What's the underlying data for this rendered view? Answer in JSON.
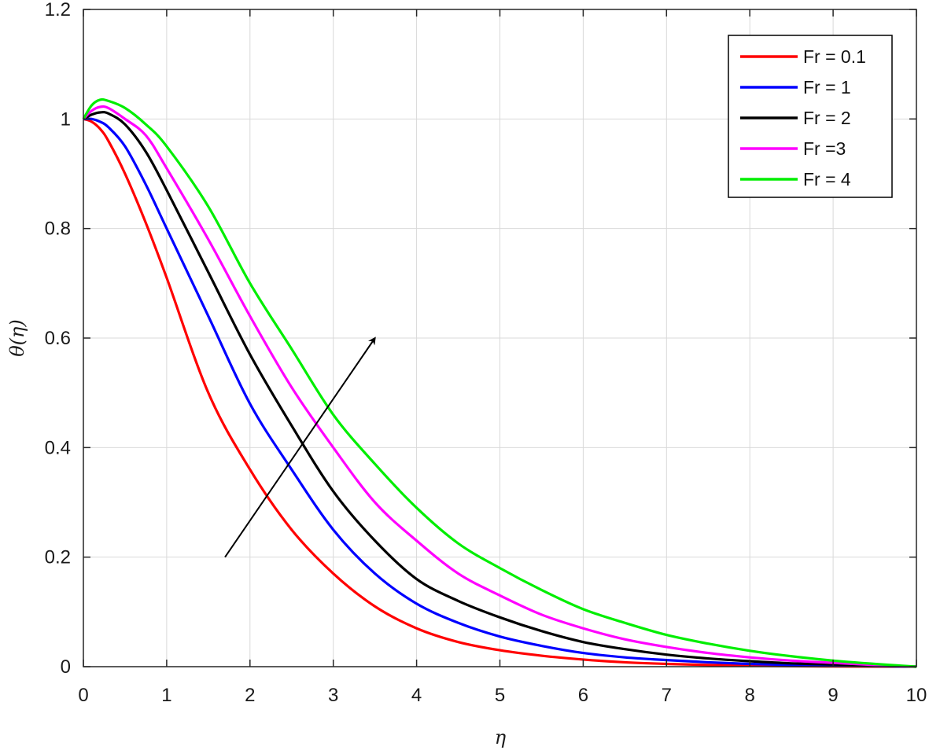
{
  "chart_data": {
    "type": "line",
    "xlabel": "η",
    "ylabel": "θ(η)",
    "xlim": [
      0,
      10
    ],
    "ylim": [
      0,
      1.2
    ],
    "xticks": [
      "0",
      "1",
      "2",
      "3",
      "4",
      "5",
      "6",
      "7",
      "8",
      "9",
      "10"
    ],
    "yticks": [
      "0",
      "0.2",
      "0.4",
      "0.6",
      "0.8",
      "1",
      "1.2"
    ],
    "grid": true,
    "legend_position": "top-right",
    "x": [
      0,
      0.1,
      0.2,
      0.3,
      0.5,
      0.75,
      1,
      1.5,
      2,
      2.5,
      3,
      3.5,
      4,
      4.5,
      5,
      5.5,
      6,
      6.5,
      7,
      7.5,
      8,
      8.5,
      9,
      9.5,
      10
    ],
    "series": [
      {
        "name": "Fr = 0.1",
        "color": "#ff0000",
        "values": [
          1.0,
          0.995,
          0.982,
          0.96,
          0.9,
          0.81,
          0.71,
          0.5,
          0.36,
          0.25,
          0.17,
          0.11,
          0.07,
          0.045,
          0.03,
          0.02,
          0.013,
          0.008,
          0.005,
          0.003,
          0.002,
          0.001,
          0.0005,
          0.0002,
          0.0
        ]
      },
      {
        "name": "Fr = 1",
        "color": "#0000ff",
        "values": [
          1.0,
          1.0,
          0.995,
          0.985,
          0.95,
          0.88,
          0.8,
          0.64,
          0.48,
          0.36,
          0.25,
          0.17,
          0.115,
          0.08,
          0.055,
          0.038,
          0.025,
          0.017,
          0.012,
          0.008,
          0.005,
          0.003,
          0.002,
          0.001,
          0.0
        ]
      },
      {
        "name": "Fr = 2",
        "color": "#000000",
        "values": [
          1.0,
          1.008,
          1.012,
          1.01,
          0.99,
          0.94,
          0.87,
          0.72,
          0.57,
          0.44,
          0.32,
          0.23,
          0.16,
          0.12,
          0.09,
          0.065,
          0.045,
          0.032,
          0.022,
          0.015,
          0.01,
          0.006,
          0.004,
          0.002,
          0.0
        ]
      },
      {
        "name": "Fr =3",
        "color": "#ff00ff",
        "values": [
          1.0,
          1.015,
          1.022,
          1.02,
          1.0,
          0.97,
          0.91,
          0.78,
          0.64,
          0.51,
          0.4,
          0.3,
          0.23,
          0.17,
          0.13,
          0.095,
          0.07,
          0.05,
          0.036,
          0.025,
          0.017,
          0.011,
          0.007,
          0.003,
          0.0
        ]
      },
      {
        "name": "Fr = 4",
        "color": "#00ee00",
        "values": [
          1.0,
          1.025,
          1.035,
          1.033,
          1.02,
          0.99,
          0.95,
          0.84,
          0.7,
          0.58,
          0.46,
          0.37,
          0.29,
          0.225,
          0.18,
          0.14,
          0.105,
          0.08,
          0.058,
          0.042,
          0.029,
          0.019,
          0.011,
          0.005,
          0.0
        ]
      }
    ],
    "arrow": {
      "from": [
        1.7,
        0.2
      ],
      "to": [
        3.5,
        0.6
      ]
    }
  }
}
